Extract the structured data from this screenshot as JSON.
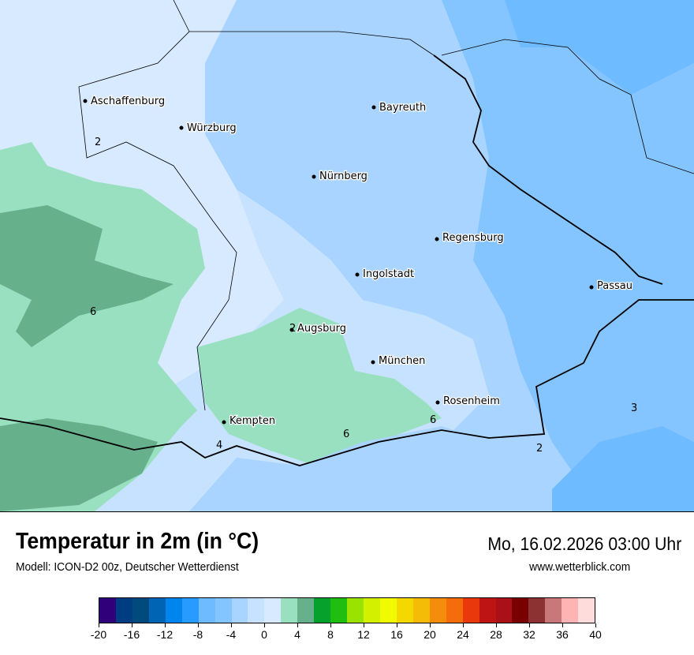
{
  "map": {
    "cities": [
      {
        "name": "Aschaffenburg"
      },
      {
        "name": "Würzburg"
      },
      {
        "name": "Bayreuth"
      },
      {
        "name": "Nürnberg"
      },
      {
        "name": "Regensburg"
      },
      {
        "name": "Ingolstadt"
      },
      {
        "name": "Passau"
      },
      {
        "name": "Augsburg"
      },
      {
        "name": "München"
      },
      {
        "name": "Rosenheim"
      },
      {
        "name": "Kempten"
      }
    ],
    "contour_labels": [
      "2",
      "6",
      "2",
      "6",
      "6",
      "4",
      "3",
      "2"
    ]
  },
  "header": {
    "title": "Temperatur in 2m (in °C)",
    "subtitle": "Modell: ICON-D2 00z, Deutscher Wetterdienst",
    "datetime": "Mo, 16.02.2026 03:00 Uhr",
    "website": "www.wetterblick.com"
  },
  "legend": {
    "colors": [
      "#30007a",
      "#003c82",
      "#004a7e",
      "#0064b4",
      "#0085ef",
      "#279bff",
      "#6fbbff",
      "#84c4ff",
      "#a8d4ff",
      "#c6e2ff",
      "#d8eaff",
      "#98e0c0",
      "#66b08c",
      "#06a02c",
      "#20be10",
      "#9ae200",
      "#d2f000",
      "#f2fa00",
      "#f4d800",
      "#f4bc06",
      "#f48c0c",
      "#f46c0c",
      "#e8380c",
      "#be1414",
      "#aa1018",
      "#780000",
      "#8c3232",
      "#c87878",
      "#ffb4b4",
      "#ffdcdc"
    ],
    "ticks": [
      "-20",
      "-16",
      "-12",
      "-8",
      "-4",
      "0",
      "4",
      "8",
      "12",
      "16",
      "20",
      "24",
      "28",
      "32",
      "36",
      "40"
    ]
  }
}
